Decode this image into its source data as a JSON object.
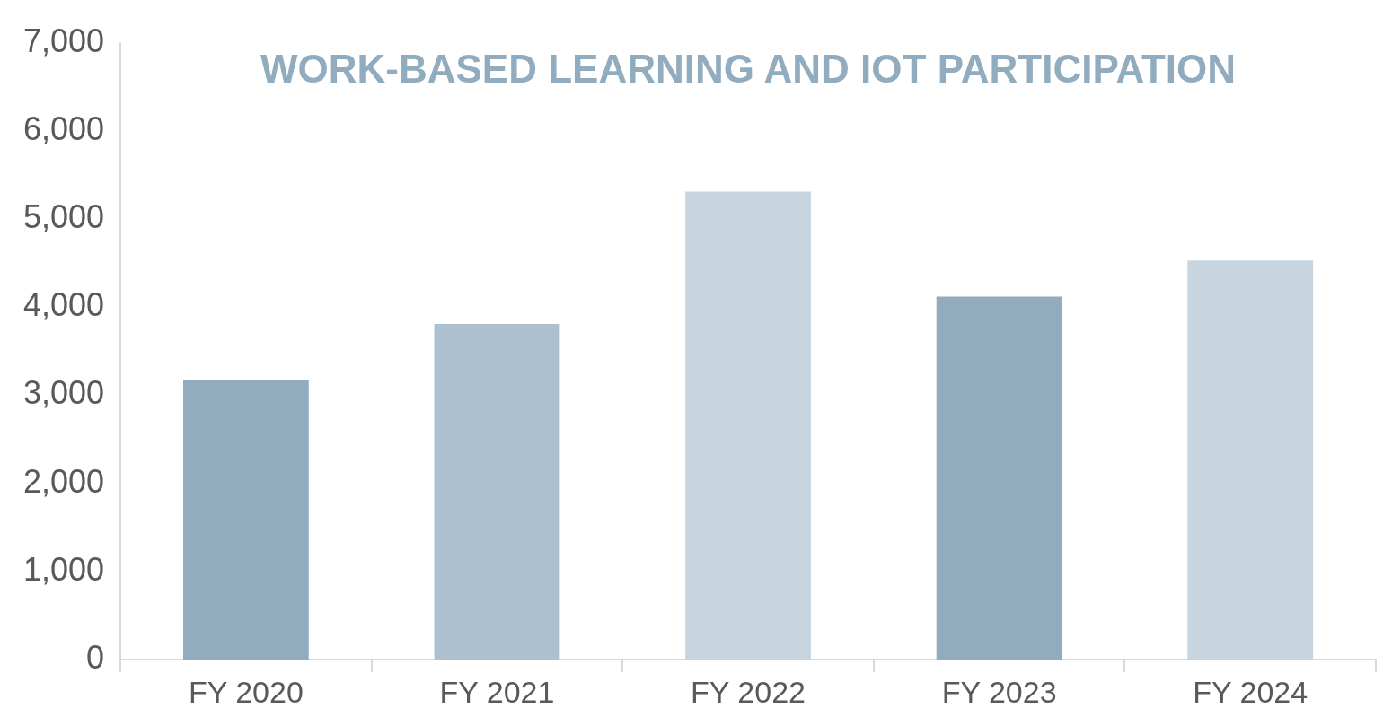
{
  "chart_data": {
    "type": "bar",
    "title": "WORK-BASED LEARNING AND IOT PARTICIPATION",
    "categories": [
      "FY 2020",
      "FY 2021",
      "FY 2022",
      "FY 2023",
      "FY 2024"
    ],
    "values": [
      3170,
      3810,
      5310,
      4120,
      4530
    ],
    "colors": [
      "#92acbf",
      "#adc0cf",
      "#c8d5df",
      "#92acbf",
      "#c8d5df"
    ],
    "ylim": [
      0,
      7000
    ],
    "yticks": [
      0,
      {
        "value": 1000,
        "label": "1,000"
      },
      {
        "value": 2000,
        "label": "2,000"
      },
      {
        "value": 3000,
        "label": "3,000"
      },
      {
        "value": 4000,
        "label": "4,000"
      },
      {
        "value": 5000,
        "label": "5,000"
      },
      {
        "value": 6000,
        "label": "6,000"
      },
      {
        "value": 7000,
        "label": "7,000"
      }
    ],
    "grid": false,
    "legend": false
  }
}
